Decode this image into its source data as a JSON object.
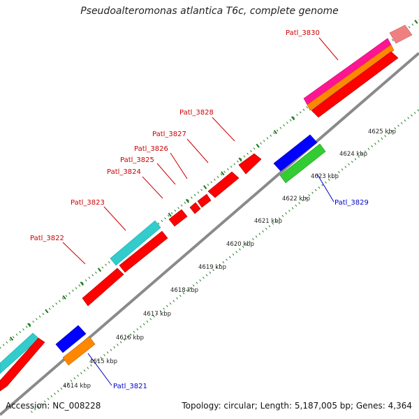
{
  "title": "Pseudoalteromonas atlantica T6c, complete genome",
  "footer": {
    "accession": "Accession: NC_008228",
    "summary": "Topology: circular; Length: 5,187,005 bp; Genes: 4,364"
  },
  "colors": {
    "forward_gene": "#ff0000",
    "reverse_gene": "#0000ff",
    "label_forward": "#cc0000",
    "label_reverse": "#0000cc",
    "backbone": "#888888",
    "ticks": "#1a7a1a",
    "cyan": "#33cccc",
    "green": "#33cc33",
    "orange": "#ff8800",
    "magenta": "#ff1493",
    "pink": "#f08080"
  },
  "kbp_labels": [
    "4614 kbp",
    "4615 kbp",
    "4616 kbp",
    "4617 kbp",
    "4618 kbp",
    "4619 kbp",
    "4620 kbp",
    "4621 kbp",
    "4622 kbp",
    "4623 kbp",
    "4624 kbp",
    "4625 kbp"
  ],
  "gene_labels": [
    {
      "text": "Patl_3822",
      "strand": "forward"
    },
    {
      "text": "Patl_3823",
      "strand": "forward"
    },
    {
      "text": "Patl_3824",
      "strand": "forward"
    },
    {
      "text": "Patl_3825",
      "strand": "forward"
    },
    {
      "text": "Patl_3826",
      "strand": "forward"
    },
    {
      "text": "Patl_3827",
      "strand": "forward"
    },
    {
      "text": "Patl_3828",
      "strand": "forward"
    },
    {
      "text": "Patl_3830",
      "strand": "forward"
    },
    {
      "text": "Patl_3829",
      "strand": "reverse"
    },
    {
      "text": "Patl_3821",
      "strand": "reverse"
    }
  ]
}
